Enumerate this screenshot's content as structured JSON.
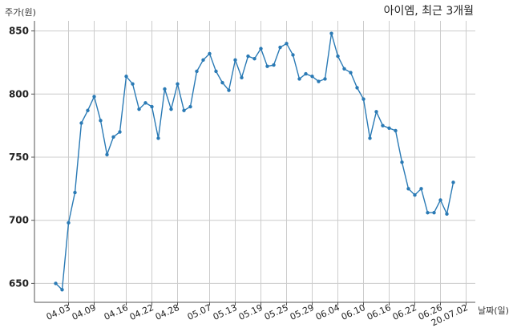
{
  "chart_data": {
    "type": "line",
    "title": "아이엠, 최근 3개월",
    "ylabel": "주가(원)",
    "xlabel": "날짜(일)",
    "ylim": [
      635,
      858
    ],
    "yticks": [
      650,
      700,
      750,
      800,
      850
    ],
    "xtick_labels": [
      "04.03",
      "04.09",
      "04.16",
      "04.22",
      "04.28",
      "05.07",
      "05.13",
      "05.19",
      "05.25",
      "05.29",
      "06.04",
      "06.10",
      "06.16",
      "06.22",
      "06.26",
      "20.07.02"
    ],
    "xtick_indices": [
      2,
      6,
      11,
      15,
      19,
      24,
      28,
      32,
      36,
      40,
      44,
      48,
      52,
      56,
      60,
      64
    ],
    "grid": true,
    "series": [
      {
        "values": [
          650,
          645,
          698,
          722,
          777,
          787,
          798,
          779,
          752,
          766,
          770,
          814,
          808,
          788,
          793,
          790,
          765,
          804,
          788,
          808,
          787,
          790,
          818,
          827,
          832,
          818,
          809,
          803,
          827,
          813,
          830,
          828,
          836,
          822,
          823,
          837,
          840,
          831,
          812,
          816,
          814,
          810,
          812,
          848,
          830,
          820,
          817,
          805,
          796,
          765,
          786,
          775,
          773,
          771,
          746,
          725,
          720,
          725,
          706,
          706,
          716,
          705,
          730
        ]
      }
    ]
  }
}
